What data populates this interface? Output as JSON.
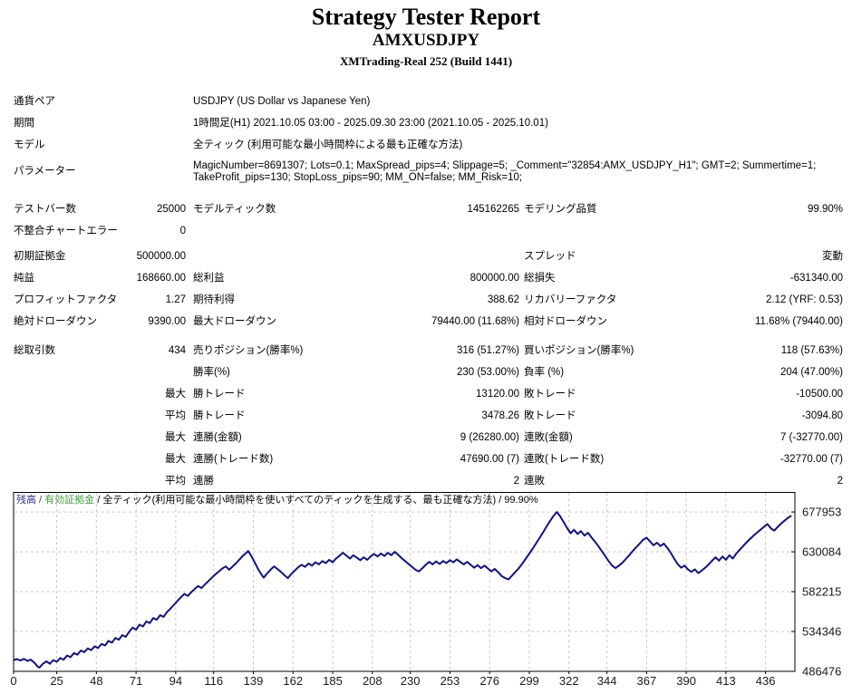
{
  "header": {
    "title": "Strategy Tester Report",
    "symbol": "AMXUSDJPY",
    "broker": "XMTrading-Real 252 (Build 1441)"
  },
  "table": {
    "rows": [
      {
        "type": "wide",
        "a": "通貨ペア",
        "v": "USDJPY (US Dollar vs Japanese Yen)"
      },
      {
        "type": "wide",
        "a": "期間",
        "v": "1時間足(H1) 2021.10.05 03:00 - 2025.09.30 23:00 (2021.10.05 - 2025.10.01)"
      },
      {
        "type": "wide",
        "a": "モデル",
        "v": "全ティック (利用可能な最小時間枠による最も正確な方法)"
      },
      {
        "type": "param",
        "a": "パラメーター",
        "lines": [
          "MagicNumber=8691307; Lots=0.1; MaxSpread_pips=4; Slippage=5; _Comment=\"32854:AMX_USDJPY_H1\"; GMT=2; Summertime=1;",
          "TakeProfit_pips=130; StopLoss_pips=90; MM_ON=false; MM_Risk=10;"
        ]
      },
      {
        "type": "gap",
        "h": 9
      },
      {
        "type": "row",
        "a": "テストバー数",
        "b": "25000",
        "c": "モデルティック数",
        "d": "145162265",
        "e": "モデリング品質",
        "f": "99.90%"
      },
      {
        "type": "row",
        "a": "不整合チャートエラー",
        "b": "0",
        "c": "",
        "d": "",
        "e": "",
        "f": ""
      },
      {
        "type": "gap",
        "h": 4
      },
      {
        "type": "row",
        "a": "初期証拠金",
        "b": "500000.00",
        "c": "",
        "d": "",
        "e": "スプレッド",
        "f": "変動"
      },
      {
        "type": "row",
        "a": "純益",
        "b": "168660.00",
        "c": "総利益",
        "d": "800000.00",
        "e": "総損失",
        "f": "-631340.00"
      },
      {
        "type": "row",
        "a": "プロフィットファクタ",
        "b": "1.27",
        "c": "期待利得",
        "d": "388.62",
        "e": "リカバリーファクタ",
        "f": "2.12 (YRF: 0.53)"
      },
      {
        "type": "row",
        "a": "絶対ドローダウン",
        "b": "9390.00",
        "c": "最大ドローダウン",
        "d": "79440.00 (11.68%)",
        "e": "相対ドローダウン",
        "f": "11.68% (79440.00)"
      },
      {
        "type": "gap",
        "h": 8
      },
      {
        "type": "row",
        "a": "総取引数",
        "b": "434",
        "c": "売りポジション(勝率%)",
        "d": "316 (51.27%)",
        "e": "買いポジション(勝率%)",
        "f": "118 (57.63%)"
      },
      {
        "type": "row",
        "a": "",
        "b": "",
        "c": "勝率(%)",
        "d": "230 (53.00%)",
        "e": "負率 (%)",
        "f": "204 (47.00%)"
      },
      {
        "type": "row",
        "a": "",
        "b": "最大",
        "c": "勝トレード",
        "d": "13120.00",
        "e": "敗トレード",
        "f": "-10500.00"
      },
      {
        "type": "row",
        "a": "",
        "b": "平均",
        "c": "勝トレード",
        "d": "3478.26",
        "e": "敗トレード",
        "f": "-3094.80"
      },
      {
        "type": "row",
        "a": "",
        "b": "最大",
        "c": "連勝(金額)",
        "d": "9 (26280.00)",
        "e": "連敗(金額)",
        "f": "7 (-32770.00)"
      },
      {
        "type": "row",
        "a": "",
        "b": "最大",
        "c": "連勝(トレード数)",
        "d": "47690.00 (7)",
        "e": "連敗(トレード数)",
        "f": "-32770.00 (7)"
      },
      {
        "type": "row",
        "a": "",
        "b": "平均",
        "c": "連勝",
        "d": "2",
        "e": "連敗",
        "f": "2"
      }
    ]
  },
  "chart_data": {
    "type": "line",
    "legend_parts": [
      {
        "text": "残高",
        "color": "#30308c"
      },
      {
        "text": " / ",
        "color": "#30308c"
      },
      {
        "text": "有効証拠金",
        "color": "#3f9e3f"
      },
      {
        "text": " / 全ティック(利用可能な最小時間枠を使いすべてのティックを生成する、最も正確な方法) / 99.90%",
        "color": "#000000"
      }
    ],
    "xlabel": "",
    "ylabel": "",
    "x_domain": [
      0,
      453
    ],
    "y_domain": [
      486476,
      702000
    ],
    "x_ticks": [
      0,
      25,
      48,
      71,
      94,
      116,
      139,
      162,
      185,
      208,
      230,
      253,
      276,
      299,
      322,
      344,
      367,
      390,
      413,
      436
    ],
    "y_ticks": [
      677953,
      630084,
      582215,
      534346,
      486476
    ],
    "grid": true,
    "line_color": "#10108c",
    "grid_color": "#c9c9c9",
    "axis_text_color": "#1a1a1a",
    "series": [
      {
        "name": "残高",
        "points": [
          [
            0,
            500000
          ],
          [
            2,
            501200
          ],
          [
            4,
            499500
          ],
          [
            6,
            501500
          ],
          [
            8,
            499000
          ],
          [
            10,
            500500
          ],
          [
            12,
            497000
          ],
          [
            14,
            492000
          ],
          [
            15,
            491000
          ],
          [
            17,
            495500
          ],
          [
            19,
            498500
          ],
          [
            21,
            495500
          ],
          [
            23,
            500000
          ],
          [
            25,
            498000
          ],
          [
            27,
            502500
          ],
          [
            29,
            500500
          ],
          [
            31,
            505500
          ],
          [
            33,
            503500
          ],
          [
            35,
            508500
          ],
          [
            37,
            506500
          ],
          [
            39,
            511500
          ],
          [
            41,
            509500
          ],
          [
            43,
            514000
          ],
          [
            45,
            512000
          ],
          [
            47,
            516500
          ],
          [
            49,
            514500
          ],
          [
            51,
            519500
          ],
          [
            53,
            517500
          ],
          [
            55,
            523000
          ],
          [
            57,
            521000
          ],
          [
            59,
            526500
          ],
          [
            61,
            524500
          ],
          [
            63,
            530000
          ],
          [
            65,
            528000
          ],
          [
            67,
            534000
          ],
          [
            69,
            539000
          ],
          [
            71,
            536500
          ],
          [
            73,
            542500
          ],
          [
            75,
            540500
          ],
          [
            77,
            546500
          ],
          [
            79,
            544500
          ],
          [
            81,
            550500
          ],
          [
            83,
            548500
          ],
          [
            85,
            554000
          ],
          [
            87,
            552000
          ],
          [
            89,
            558000
          ],
          [
            91,
            562000
          ],
          [
            93,
            566500
          ],
          [
            95,
            571000
          ],
          [
            97,
            575500
          ],
          [
            99,
            579500
          ],
          [
            101,
            577000
          ],
          [
            103,
            581500
          ],
          [
            105,
            585500
          ],
          [
            107,
            589000
          ],
          [
            109,
            586500
          ],
          [
            111,
            591000
          ],
          [
            113,
            595000
          ],
          [
            115,
            599000
          ],
          [
            117,
            603000
          ],
          [
            119,
            606500
          ],
          [
            121,
            610000
          ],
          [
            123,
            612500
          ],
          [
            125,
            608500
          ],
          [
            127,
            612500
          ],
          [
            129,
            616500
          ],
          [
            131,
            621000
          ],
          [
            133,
            625500
          ],
          [
            135,
            629000
          ],
          [
            136,
            631000
          ],
          [
            138,
            624500
          ],
          [
            140,
            616500
          ],
          [
            142,
            608500
          ],
          [
            144,
            602000
          ],
          [
            145,
            599000
          ],
          [
            147,
            604000
          ],
          [
            149,
            608500
          ],
          [
            151,
            612500
          ],
          [
            153,
            609500
          ],
          [
            155,
            606000
          ],
          [
            157,
            602000
          ],
          [
            159,
            598500
          ],
          [
            161,
            603500
          ],
          [
            163,
            607500
          ],
          [
            165,
            611500
          ],
          [
            167,
            614500
          ],
          [
            169,
            612000
          ],
          [
            171,
            616000
          ],
          [
            173,
            613500
          ],
          [
            175,
            617500
          ],
          [
            177,
            615000
          ],
          [
            179,
            619000
          ],
          [
            181,
            616500
          ],
          [
            183,
            620500
          ],
          [
            185,
            617500
          ],
          [
            187,
            622000
          ],
          [
            189,
            625500
          ],
          [
            191,
            629000
          ],
          [
            193,
            625500
          ],
          [
            195,
            622000
          ],
          [
            197,
            626000
          ],
          [
            199,
            623000
          ],
          [
            201,
            620000
          ],
          [
            203,
            623500
          ],
          [
            205,
            620500
          ],
          [
            207,
            624500
          ],
          [
            209,
            627500
          ],
          [
            211,
            624500
          ],
          [
            213,
            628000
          ],
          [
            215,
            625000
          ],
          [
            217,
            629000
          ],
          [
            219,
            626000
          ],
          [
            221,
            630000
          ],
          [
            223,
            626500
          ],
          [
            225,
            622500
          ],
          [
            227,
            619000
          ],
          [
            229,
            615500
          ],
          [
            231,
            612000
          ],
          [
            233,
            608500
          ],
          [
            235,
            606500
          ],
          [
            237,
            610500
          ],
          [
            239,
            614500
          ],
          [
            241,
            618000
          ],
          [
            243,
            615000
          ],
          [
            245,
            618500
          ],
          [
            247,
            615500
          ],
          [
            249,
            619000
          ],
          [
            251,
            616500
          ],
          [
            253,
            620000
          ],
          [
            255,
            617500
          ],
          [
            257,
            621000
          ],
          [
            259,
            618000
          ],
          [
            261,
            615000
          ],
          [
            263,
            618000
          ],
          [
            265,
            614500
          ],
          [
            267,
            611000
          ],
          [
            269,
            614000
          ],
          [
            271,
            610500
          ],
          [
            273,
            613500
          ],
          [
            275,
            610000
          ],
          [
            277,
            606500
          ],
          [
            279,
            609500
          ],
          [
            281,
            605500
          ],
          [
            283,
            601000
          ],
          [
            285,
            598500
          ],
          [
            287,
            597000
          ],
          [
            289,
            601500
          ],
          [
            291,
            606000
          ],
          [
            293,
            610500
          ],
          [
            295,
            616000
          ],
          [
            297,
            622000
          ],
          [
            299,
            628000
          ],
          [
            301,
            634000
          ],
          [
            303,
            640500
          ],
          [
            305,
            647000
          ],
          [
            307,
            653500
          ],
          [
            309,
            660500
          ],
          [
            311,
            667000
          ],
          [
            313,
            673000
          ],
          [
            315,
            677953
          ],
          [
            317,
            672500
          ],
          [
            319,
            665500
          ],
          [
            321,
            658500
          ],
          [
            323,
            652500
          ],
          [
            325,
            656500
          ],
          [
            327,
            651500
          ],
          [
            329,
            655000
          ],
          [
            331,
            649500
          ],
          [
            333,
            653000
          ],
          [
            335,
            647500
          ],
          [
            337,
            642500
          ],
          [
            339,
            637000
          ],
          [
            341,
            631000
          ],
          [
            343,
            625000
          ],
          [
            345,
            619000
          ],
          [
            347,
            613500
          ],
          [
            349,
            610500
          ],
          [
            351,
            613500
          ],
          [
            353,
            617000
          ],
          [
            355,
            621500
          ],
          [
            357,
            626000
          ],
          [
            359,
            631000
          ],
          [
            361,
            635500
          ],
          [
            363,
            640000
          ],
          [
            365,
            644500
          ],
          [
            367,
            647000
          ],
          [
            369,
            642500
          ],
          [
            371,
            638000
          ],
          [
            373,
            641000
          ],
          [
            375,
            637000
          ],
          [
            377,
            640000
          ],
          [
            379,
            635000
          ],
          [
            381,
            629000
          ],
          [
            383,
            622000
          ],
          [
            385,
            615500
          ],
          [
            387,
            611000
          ],
          [
            389,
            613500
          ],
          [
            391,
            609000
          ],
          [
            393,
            606000
          ],
          [
            395,
            609000
          ],
          [
            397,
            604500
          ],
          [
            399,
            607500
          ],
          [
            401,
            611000
          ],
          [
            403,
            615000
          ],
          [
            405,
            619500
          ],
          [
            407,
            623500
          ],
          [
            409,
            619500
          ],
          [
            411,
            624500
          ],
          [
            413,
            620500
          ],
          [
            415,
            626000
          ],
          [
            417,
            622000
          ],
          [
            419,
            628000
          ],
          [
            421,
            632500
          ],
          [
            423,
            637000
          ],
          [
            425,
            641500
          ],
          [
            427,
            645500
          ],
          [
            429,
            649500
          ],
          [
            431,
            653000
          ],
          [
            433,
            656500
          ],
          [
            435,
            660000
          ],
          [
            437,
            663500
          ],
          [
            439,
            658500
          ],
          [
            441,
            655500
          ],
          [
            443,
            660000
          ],
          [
            445,
            664000
          ],
          [
            447,
            667500
          ],
          [
            449,
            671000
          ],
          [
            451,
            673500
          ]
        ]
      }
    ]
  }
}
